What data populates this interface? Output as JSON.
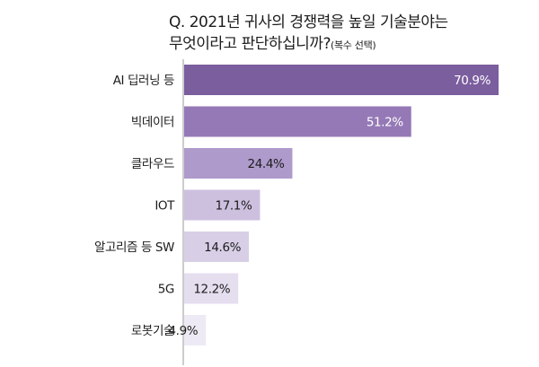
{
  "title": {
    "line1": "Q. 2021년 귀사의 경쟁력을 높일 기술분야는",
    "line2": "무엇이라고 판단하십니까?",
    "note": "(복수 선택)"
  },
  "chart_data": {
    "type": "bar",
    "orientation": "horizontal",
    "categories": [
      "AI 딥러닝 등",
      "빅데이터",
      "클라우드",
      "IOT",
      "알고리즘 등 SW",
      "5G",
      "로봇기술"
    ],
    "values": [
      70.9,
      51.2,
      24.4,
      17.1,
      14.6,
      12.2,
      4.9
    ],
    "value_labels": [
      "70.9%",
      "51.2%",
      "24.4%",
      "17.1%",
      "14.6%",
      "12.2%",
      "4.9%"
    ],
    "unit": "%",
    "xlim": [
      0,
      75
    ],
    "grid": false,
    "colors": [
      "#7b5e9e",
      "#9579b6",
      "#ae9acb",
      "#cdc0df",
      "#d8cfe7",
      "#e4deef",
      "#eeeaf5"
    ],
    "value_label_colors": [
      "#ffffff",
      "#ffffff",
      "#1c1c1c",
      "#1c1c1c",
      "#1c1c1c",
      "#1c1c1c",
      "#1c1c1c"
    ],
    "axis_color": "#9a9a9a"
  }
}
